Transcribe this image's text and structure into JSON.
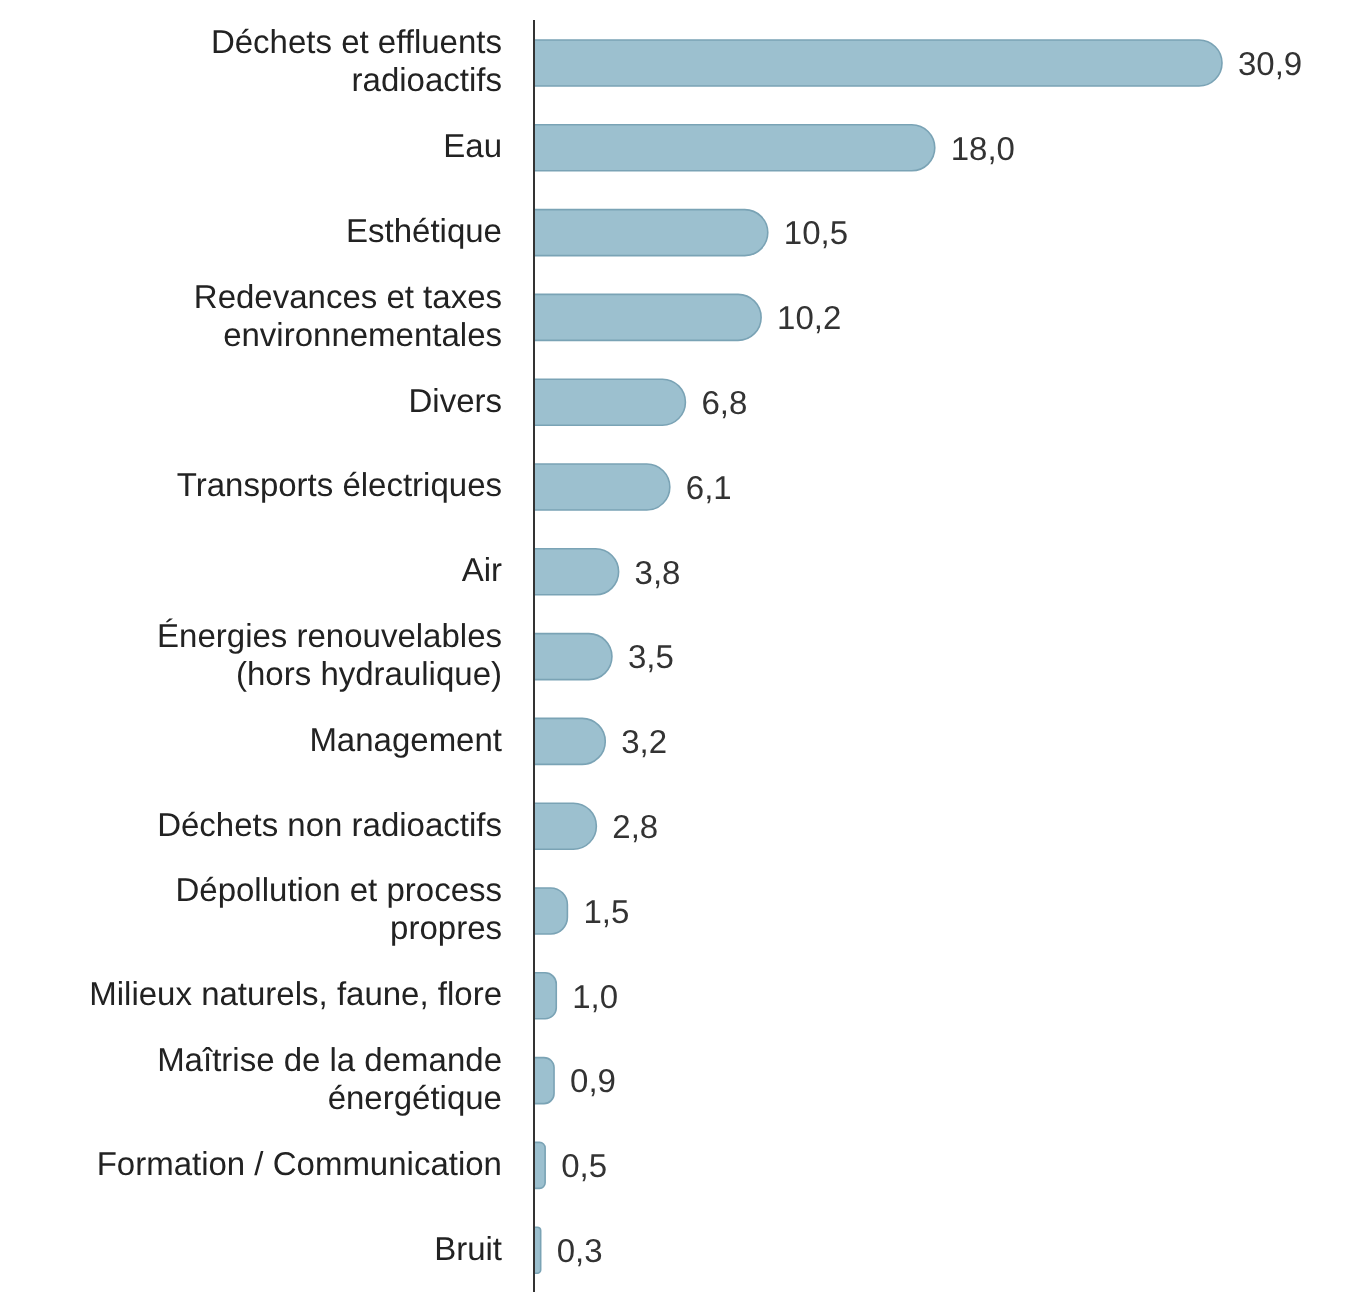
{
  "chart_data": {
    "type": "bar",
    "orientation": "horizontal",
    "categories": [
      "Déchets et effluents\nradioactifs",
      "Eau",
      "Esthétique",
      "Redevances et taxes\nenvironnementales",
      "Divers",
      "Transports électriques",
      "Air",
      "Énergies renouvelables\n(hors hydraulique)",
      "Management",
      "Déchets non radioactifs",
      "Dépollution et process\npropres",
      "Milieux naturels, faune, flore",
      "Maîtrise de la demande\nénergétique",
      "Formation / Communication",
      "Bruit"
    ],
    "values": [
      30.9,
      18.0,
      10.5,
      10.2,
      6.8,
      6.1,
      3.8,
      3.5,
      3.2,
      2.8,
      1.5,
      1.0,
      0.9,
      0.5,
      0.3
    ],
    "value_labels": [
      "30,9",
      "18,0",
      "10,5",
      "10,2",
      "6,8",
      "6,1",
      "3,8",
      "3,5",
      "3,2",
      "2,8",
      "1,5",
      "1,0",
      "0,9",
      "0,5",
      "0,3"
    ],
    "color": "#9cc0cf"
  }
}
